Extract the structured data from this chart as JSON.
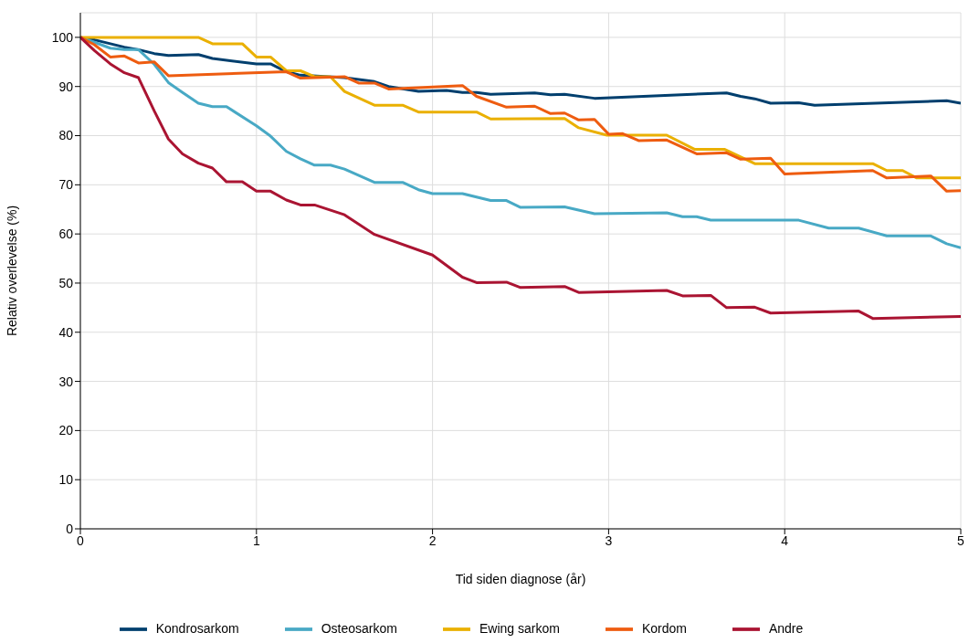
{
  "chart_data": {
    "type": "line",
    "xlabel": "Tid siden diagnose (år)",
    "ylabel": "Relativ overlevelse (%)",
    "xlim": [
      0,
      5
    ],
    "xticks": [
      0,
      1,
      2,
      3,
      4,
      5
    ],
    "ylim": [
      0,
      105
    ],
    "yticks": [
      0,
      10,
      20,
      30,
      40,
      50,
      60,
      70,
      80,
      90,
      100
    ],
    "grid": true,
    "legend": "bottom",
    "marker": "none",
    "line_style": "solid",
    "series": [
      {
        "name": "Kondrosarkom",
        "color": "#003f6e",
        "x": [
          0,
          0.08,
          0.25,
          0.33,
          0.42,
          0.5,
          0.67,
          0.75,
          1.0,
          1.08,
          1.17,
          1.25,
          1.5,
          1.67,
          1.75,
          1.92,
          2.08,
          2.17,
          2.25,
          2.33,
          2.58,
          2.67,
          2.75,
          2.92,
          3.67,
          3.75,
          3.83,
          3.92,
          4.08,
          4.17,
          4.92,
          5
        ],
        "values": [
          100,
          99.5,
          98,
          97.5,
          96.7,
          96.3,
          96.5,
          95.7,
          94.6,
          94.6,
          93,
          92.3,
          91.8,
          91,
          90,
          89,
          89.2,
          88.8,
          88.8,
          88.4,
          88.7,
          88.3,
          88.4,
          87.6,
          88.7,
          88,
          87.5,
          86.6,
          86.7,
          86.2,
          87.1,
          86.6
        ]
      },
      {
        "name": "Osteosarkom",
        "color": "#48a9c5",
        "x": [
          0,
          0.08,
          0.17,
          0.25,
          0.33,
          0.42,
          0.5,
          0.58,
          0.67,
          0.75,
          0.83,
          1.0,
          1.08,
          1.17,
          1.25,
          1.33,
          1.42,
          1.5,
          1.67,
          1.83,
          1.92,
          2.0,
          2.17,
          2.33,
          2.42,
          2.5,
          2.75,
          2.92,
          3.33,
          3.42,
          3.5,
          3.58,
          4.08,
          4.25,
          4.42,
          4.58,
          4.83,
          4.92,
          5
        ],
        "values": [
          100,
          99,
          97.8,
          97.5,
          97.5,
          94.5,
          90.8,
          88.8,
          86.6,
          85.9,
          85.9,
          82,
          79.9,
          76.8,
          75.3,
          74,
          74,
          73.2,
          70.5,
          70.5,
          69,
          68.2,
          68.2,
          66.8,
          66.8,
          65.4,
          65.5,
          64.1,
          64.3,
          63.5,
          63.5,
          62.8,
          62.8,
          61.2,
          61.2,
          59.6,
          59.6,
          58,
          57.2
        ]
      },
      {
        "name": "Ewing sarkom",
        "color": "#eab000",
        "x": [
          0,
          0.67,
          0.75,
          0.92,
          1.0,
          1.08,
          1.17,
          1.25,
          1.33,
          1.42,
          1.5,
          1.67,
          1.83,
          1.92,
          2.25,
          2.33,
          2.75,
          2.83,
          2.99,
          3.33,
          3.49,
          3.66,
          3.83,
          4.5,
          4.58,
          4.67,
          4.75,
          5
        ],
        "values": [
          100,
          100,
          98.7,
          98.7,
          96,
          96,
          93.2,
          93.2,
          92,
          92,
          89,
          86.2,
          86.2,
          84.8,
          84.8,
          83.4,
          83.5,
          81.6,
          80.1,
          80.1,
          77.2,
          77.2,
          74.3,
          74.3,
          72.9,
          72.9,
          71.4,
          71.4
        ]
      },
      {
        "name": "Kordom",
        "color": "#ee5c10",
        "x": [
          0,
          0.08,
          0.17,
          0.25,
          0.33,
          0.42,
          0.5,
          1.17,
          1.25,
          1.5,
          1.58,
          1.67,
          1.75,
          2.17,
          2.25,
          2.42,
          2.58,
          2.67,
          2.75,
          2.83,
          2.92,
          3.0,
          3.08,
          3.17,
          3.33,
          3.5,
          3.67,
          3.75,
          3.92,
          4.0,
          4.5,
          4.58,
          4.83,
          4.92,
          5
        ],
        "values": [
          100,
          98.5,
          96,
          96.2,
          94.8,
          95,
          92.2,
          93,
          91.7,
          92,
          90.7,
          90.7,
          89.5,
          90.2,
          88,
          85.8,
          86,
          84.5,
          84.6,
          83.2,
          83.3,
          80.3,
          80.4,
          79,
          79.1,
          76.3,
          76.5,
          75.2,
          75.4,
          72.2,
          72.9,
          71.4,
          71.8,
          68.7,
          68.8
        ]
      },
      {
        "name": "Andre",
        "color": "#aa1432",
        "x": [
          0,
          0.08,
          0.17,
          0.25,
          0.33,
          0.42,
          0.5,
          0.58,
          0.67,
          0.75,
          0.83,
          0.92,
          1.0,
          1.08,
          1.17,
          1.25,
          1.33,
          1.5,
          1.67,
          2.0,
          2.17,
          2.25,
          2.42,
          2.5,
          2.75,
          2.83,
          3.33,
          3.42,
          3.58,
          3.67,
          3.83,
          3.92,
          4.42,
          4.5,
          5
        ],
        "values": [
          100,
          97.3,
          94.6,
          92.8,
          91.8,
          85,
          79.3,
          76.3,
          74.4,
          73.4,
          70.6,
          70.6,
          68.7,
          68.7,
          66.9,
          65.9,
          65.9,
          63.9,
          59.9,
          55.7,
          51.2,
          50.1,
          50.2,
          49.1,
          49.3,
          48.1,
          48.5,
          47.4,
          47.5,
          45,
          45.1,
          43.9,
          44.3,
          42.8,
          43.2
        ]
      }
    ]
  }
}
